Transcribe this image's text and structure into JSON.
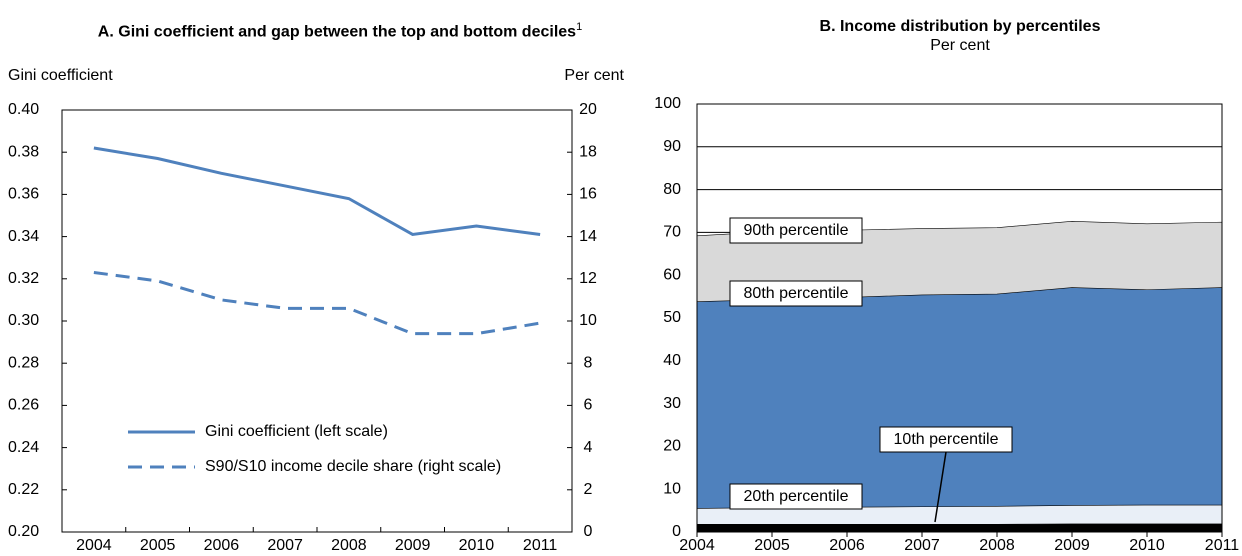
{
  "chart_data": [
    {
      "type": "line",
      "title": "A. Gini coefficient and gap between the top and bottom deciles",
      "title_note": "1",
      "ylabel": "Gini coefficient",
      "y2label": "Per cent",
      "categories": [
        "2004",
        "2005",
        "2006",
        "2007",
        "2008",
        "2009",
        "2010",
        "2011"
      ],
      "series": [
        {
          "name": "Gini coefficient (left scale)",
          "color": "#4f81bd",
          "line_style": "solid",
          "values": [
            0.382,
            0.377,
            0.37,
            0.364,
            0.358,
            0.341,
            0.345,
            0.341
          ]
        },
        {
          "name": "S90/S10 income decile share (right scale)",
          "color": "#4f81bd",
          "line_style": "dashed",
          "axis": "y2",
          "values": [
            12.3,
            11.9,
            11.0,
            10.6,
            10.6,
            9.4,
            9.4,
            9.9
          ]
        }
      ],
      "ylim": [
        0.2,
        0.4
      ],
      "yticks": [
        {
          "value": 0.2,
          "label": "0.20"
        },
        0.22,
        0.24,
        0.26,
        0.28,
        {
          "value": 0.3,
          "label": "0.30"
        },
        0.32,
        0.34,
        0.36,
        0.38,
        {
          "value": 0.4,
          "label": "0.40"
        }
      ],
      "y2lim": [
        0,
        20
      ],
      "y2ticks": [
        0,
        2,
        4,
        6,
        8,
        10,
        12,
        14,
        16,
        18,
        20
      ],
      "grid": false,
      "legend": "lower left"
    },
    {
      "type": "area",
      "title": "B. Income distribution by percentiles",
      "subtitle": "Per cent",
      "stacked": false,
      "x": [
        2004,
        2005,
        2006,
        2007,
        2008,
        2009,
        2010,
        2011
      ],
      "xlim": [
        2004,
        2011
      ],
      "xticks": [
        2004,
        2005,
        2006,
        2007,
        2008,
        2009,
        2010,
        2011
      ],
      "ylim": [
        0,
        100
      ],
      "yticks": [
        0,
        10,
        20,
        30,
        40,
        50,
        60,
        70,
        80,
        90,
        100
      ],
      "grid": true,
      "series": [
        {
          "name": "90th percentile",
          "color": "#d9d9d9",
          "values": [
            69.2,
            70.2,
            70.5,
            70.9,
            71.1,
            72.6,
            72.0,
            72.4
          ]
        },
        {
          "name": "80th percentile",
          "color": "#4f81bd",
          "values": [
            53.8,
            54.3,
            54.8,
            55.4,
            55.6,
            57.1,
            56.6,
            57.1
          ]
        },
        {
          "name": "20th percentile",
          "color": "#e9eff7",
          "values": [
            5.5,
            5.7,
            5.8,
            5.9,
            6.0,
            6.2,
            6.3,
            6.3
          ]
        },
        {
          "name": "10th percentile",
          "color": "#000000",
          "values": [
            1.8,
            1.8,
            1.8,
            1.8,
            1.8,
            1.9,
            1.9,
            1.9
          ]
        }
      ]
    }
  ]
}
